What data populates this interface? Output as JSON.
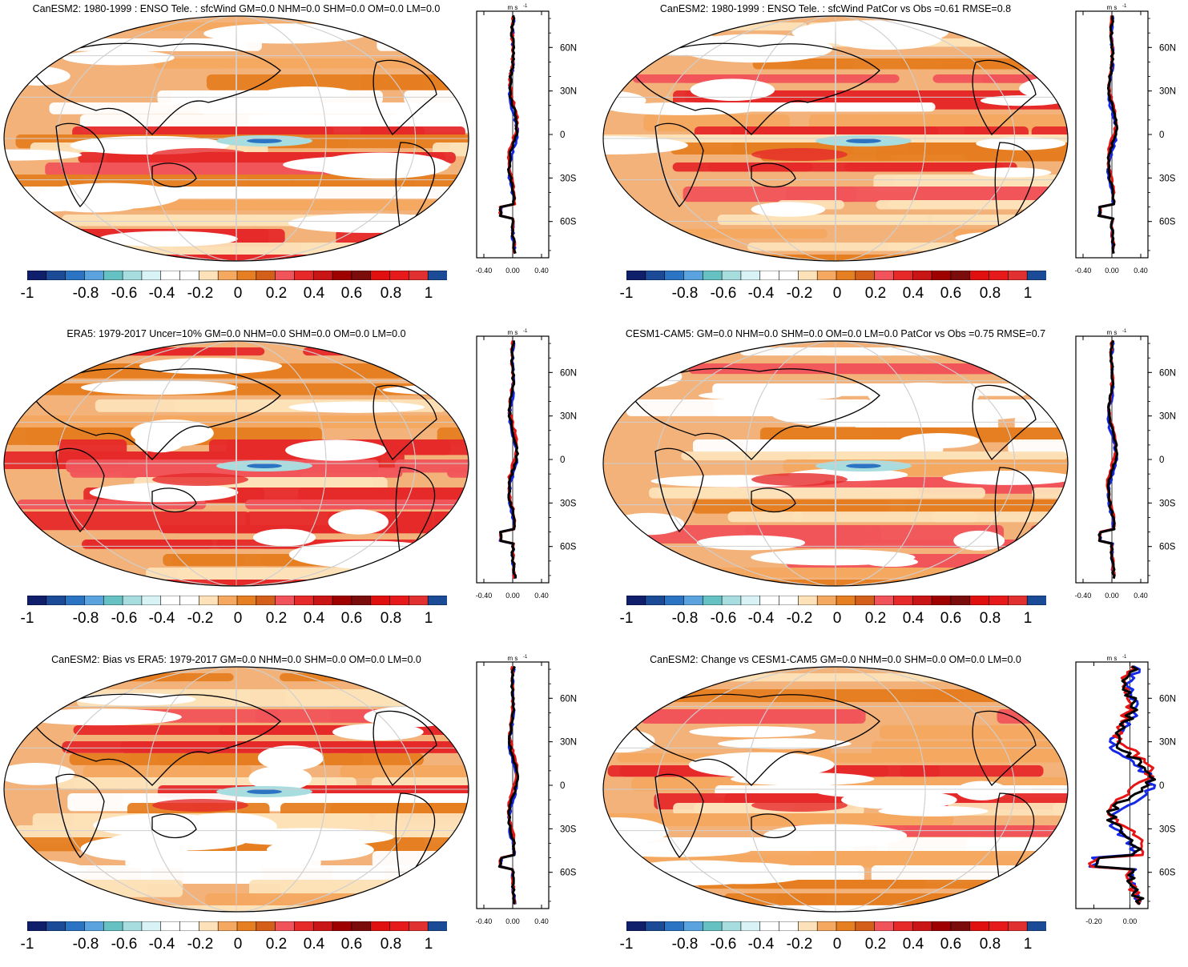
{
  "colorbar": {
    "labels": [
      "-1",
      "-0.8",
      "-0.6",
      "-0.4",
      "-0.2",
      "0",
      "0.2",
      "0.4",
      "0.6",
      "0.8",
      "1"
    ],
    "colors": [
      "#0f1f6b",
      "#1b4a96",
      "#2a74c3",
      "#5aa3df",
      "#66c2c2",
      "#a8dde0",
      "#d8f2f5",
      "#ffffff",
      "#ffffff",
      "#fde1b8",
      "#f4a860",
      "#e67e22",
      "#d35f1a",
      "#f0545a",
      "#e62a2a",
      "#c91515",
      "#9e0000",
      "#7a0c0c",
      "#e01010",
      "#e61a1a",
      "#e03030",
      "#1b4a96"
    ]
  },
  "panels": [
    {
      "title": "CanESM2: 1980-1999 : ENSO Tele. : sfcWind GM=0.0 NHM=0.0 SHM=0.0 OM=0.0 LM=0.0",
      "zm": {
        "unit": "m s",
        "unit_sup": "-1",
        "xticks": [
          "-0.40",
          "0.00",
          "0.40"
        ],
        "yticks": [
          "60N",
          "30N",
          "0",
          "30S",
          "60S"
        ]
      }
    },
    {
      "title": "CanESM2: 1980-1999 : ENSO Tele. : sfcWind PatCor vs Obs =0.61 RMSE=0.8",
      "zm": {
        "unit": "m s",
        "unit_sup": "-1",
        "xticks": [
          "-0.40",
          "0.00",
          "0.40"
        ],
        "yticks": [
          "60N",
          "30N",
          "0",
          "30S",
          "60S"
        ]
      }
    },
    {
      "title": "ERA5: 1979-2017 Uncer=10% GM=0.0 NHM=0.0 SHM=0.0 OM=0.0 LM=0.0",
      "zm": {
        "unit": "m s",
        "unit_sup": "-1",
        "xticks": [
          "-0.40",
          "0.00",
          "0.40"
        ],
        "yticks": [
          "60N",
          "30N",
          "0",
          "30S",
          "60S"
        ]
      }
    },
    {
      "title": "CESM1-CAM5: GM=0.0 NHM=0.0 SHM=0.0 OM=0.0 LM=0.0 PatCor vs Obs =0.75 RMSE=0.7",
      "zm": {
        "unit": "m s",
        "unit_sup": "-1",
        "xticks": [
          "-0.40",
          "0.00",
          "0.40"
        ],
        "yticks": [
          "60N",
          "30N",
          "0",
          "30S",
          "60S"
        ]
      }
    },
    {
      "title": "CanESM2: Bias vs ERA5: 1979-2017 GM=0.0 NHM=0.0 SHM=0.0 OM=0.0 LM=0.0",
      "zm": {
        "unit": "m s",
        "unit_sup": "-1",
        "xticks": [
          "-0.40",
          "0.00",
          "0.40"
        ],
        "yticks": [
          "60N",
          "30N",
          "0",
          "30S",
          "60S"
        ]
      }
    },
    {
      "title": "CanESM2: Change vs CESM1-CAM5 GM=0.0 NHM=0.0 SHM=0.0 OM=0.0 LM=0.0",
      "zm": {
        "unit": "m s",
        "unit_sup": "-1",
        "xticks": [
          "-0.20",
          "0.00"
        ],
        "yticks": [
          "60N",
          "30N",
          "0",
          "30S",
          "60S"
        ]
      }
    }
  ],
  "line_colors": {
    "model": "#e61414",
    "obs": "#1428e6",
    "mean": "#000000"
  }
}
